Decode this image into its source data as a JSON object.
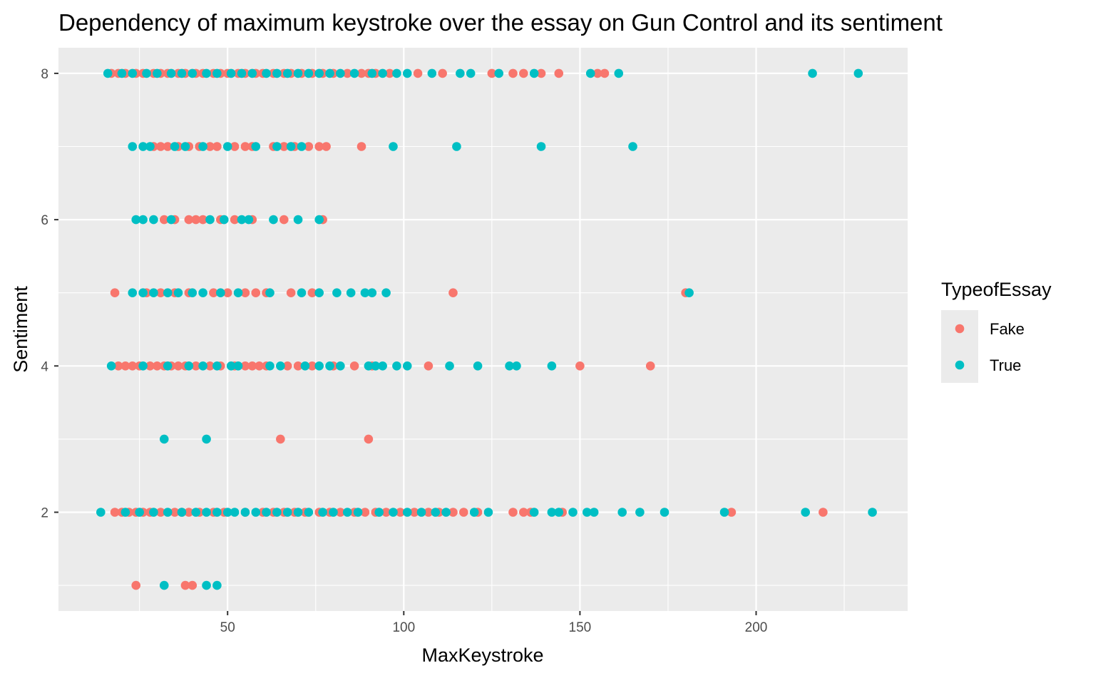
{
  "chart_data": {
    "type": "scatter",
    "title": "Dependency of maximum keystroke over the essay on Gun Control and its sentiment",
    "xlabel": "MaxKeystroke",
    "ylabel": "Sentiment",
    "xlim": [
      2,
      243
    ],
    "ylim": [
      0.65,
      8.35
    ],
    "x_ticks": [
      50,
      100,
      150,
      200
    ],
    "y_ticks": [
      2,
      4,
      6,
      8
    ],
    "grid": true,
    "legend": {
      "title": "TypeofEssay",
      "position": "right"
    },
    "colors": {
      "Fake": "#F8766D",
      "True": "#00BFC4",
      "panel": "#EBEBEB",
      "grid": "#FFFFFF"
    },
    "series": [
      {
        "name": "Fake",
        "points": [
          [
            17,
            8
          ],
          [
            19,
            8
          ],
          [
            21,
            8
          ],
          [
            24,
            8
          ],
          [
            26,
            8
          ],
          [
            29,
            8
          ],
          [
            31,
            8
          ],
          [
            33,
            8
          ],
          [
            36,
            8
          ],
          [
            38,
            8
          ],
          [
            41,
            8
          ],
          [
            43,
            8
          ],
          [
            46,
            8
          ],
          [
            48,
            8
          ],
          [
            50,
            8
          ],
          [
            53,
            8
          ],
          [
            55,
            8
          ],
          [
            58,
            8
          ],
          [
            60,
            8
          ],
          [
            63,
            8
          ],
          [
            66,
            8
          ],
          [
            68,
            8
          ],
          [
            71,
            8
          ],
          [
            74,
            8
          ],
          [
            77,
            8
          ],
          [
            80,
            8
          ],
          [
            84,
            8
          ],
          [
            88,
            8
          ],
          [
            90,
            8
          ],
          [
            92,
            8
          ],
          [
            96,
            8
          ],
          [
            104,
            8
          ],
          [
            111,
            8
          ],
          [
            125,
            8
          ],
          [
            131,
            8
          ],
          [
            134,
            8
          ],
          [
            139,
            8
          ],
          [
            144,
            8
          ],
          [
            155,
            8
          ],
          [
            157,
            8
          ],
          [
            29,
            7
          ],
          [
            31,
            7
          ],
          [
            33,
            7
          ],
          [
            36,
            7
          ],
          [
            39,
            7
          ],
          [
            42,
            7
          ],
          [
            45,
            7
          ],
          [
            47,
            7
          ],
          [
            52,
            7
          ],
          [
            55,
            7
          ],
          [
            57,
            7
          ],
          [
            63,
            7
          ],
          [
            66,
            7
          ],
          [
            69,
            7
          ],
          [
            73,
            7
          ],
          [
            76,
            7
          ],
          [
            78,
            7
          ],
          [
            88,
            7
          ],
          [
            32,
            6
          ],
          [
            35,
            6
          ],
          [
            39,
            6
          ],
          [
            41,
            6
          ],
          [
            43,
            6
          ],
          [
            48,
            6
          ],
          [
            52,
            6
          ],
          [
            57,
            6
          ],
          [
            66,
            6
          ],
          [
            77,
            6
          ],
          [
            18,
            5
          ],
          [
            27,
            5
          ],
          [
            31,
            5
          ],
          [
            35,
            5
          ],
          [
            39,
            5
          ],
          [
            46,
            5
          ],
          [
            50,
            5
          ],
          [
            55,
            5
          ],
          [
            58,
            5
          ],
          [
            61,
            5
          ],
          [
            68,
            5
          ],
          [
            74,
            5
          ],
          [
            114,
            5
          ],
          [
            180,
            5
          ],
          [
            19,
            4
          ],
          [
            21,
            4
          ],
          [
            23,
            4
          ],
          [
            25,
            4
          ],
          [
            28,
            4
          ],
          [
            30,
            4
          ],
          [
            32,
            4
          ],
          [
            34,
            4
          ],
          [
            36,
            4
          ],
          [
            38,
            4
          ],
          [
            41,
            4
          ],
          [
            45,
            4
          ],
          [
            48,
            4
          ],
          [
            52,
            4
          ],
          [
            55,
            4
          ],
          [
            57,
            4
          ],
          [
            59,
            4
          ],
          [
            61,
            4
          ],
          [
            67,
            4
          ],
          [
            70,
            4
          ],
          [
            74,
            4
          ],
          [
            80,
            4
          ],
          [
            86,
            4
          ],
          [
            91,
            4
          ],
          [
            107,
            4
          ],
          [
            150,
            4
          ],
          [
            170,
            4
          ],
          [
            65,
            3
          ],
          [
            90,
            3
          ],
          [
            18,
            2
          ],
          [
            20,
            2
          ],
          [
            22,
            2
          ],
          [
            24,
            2
          ],
          [
            26,
            2
          ],
          [
            28,
            2
          ],
          [
            31,
            2
          ],
          [
            35,
            2
          ],
          [
            37,
            2
          ],
          [
            39,
            2
          ],
          [
            42,
            2
          ],
          [
            46,
            2
          ],
          [
            49,
            2
          ],
          [
            55,
            2
          ],
          [
            60,
            2
          ],
          [
            63,
            2
          ],
          [
            66,
            2
          ],
          [
            69,
            2
          ],
          [
            72,
            2
          ],
          [
            76,
            2
          ],
          [
            79,
            2
          ],
          [
            82,
            2
          ],
          [
            86,
            2
          ],
          [
            89,
            2
          ],
          [
            92,
            2
          ],
          [
            95,
            2
          ],
          [
            99,
            2
          ],
          [
            103,
            2
          ],
          [
            107,
            2
          ],
          [
            110,
            2
          ],
          [
            114,
            2
          ],
          [
            117,
            2
          ],
          [
            121,
            2
          ],
          [
            131,
            2
          ],
          [
            134,
            2
          ],
          [
            136,
            2
          ],
          [
            145,
            2
          ],
          [
            193,
            2
          ],
          [
            219,
            2
          ],
          [
            24,
            1
          ],
          [
            38,
            1
          ],
          [
            40,
            1
          ]
        ]
      },
      {
        "name": "True",
        "points": [
          [
            16,
            8
          ],
          [
            20,
            8
          ],
          [
            23,
            8
          ],
          [
            27,
            8
          ],
          [
            30,
            8
          ],
          [
            34,
            8
          ],
          [
            37,
            8
          ],
          [
            40,
            8
          ],
          [
            44,
            8
          ],
          [
            47,
            8
          ],
          [
            51,
            8
          ],
          [
            54,
            8
          ],
          [
            57,
            8
          ],
          [
            61,
            8
          ],
          [
            64,
            8
          ],
          [
            67,
            8
          ],
          [
            70,
            8
          ],
          [
            73,
            8
          ],
          [
            76,
            8
          ],
          [
            79,
            8
          ],
          [
            82,
            8
          ],
          [
            86,
            8
          ],
          [
            91,
            8
          ],
          [
            94,
            8
          ],
          [
            98,
            8
          ],
          [
            101,
            8
          ],
          [
            108,
            8
          ],
          [
            116,
            8
          ],
          [
            119,
            8
          ],
          [
            127,
            8
          ],
          [
            137,
            8
          ],
          [
            153,
            8
          ],
          [
            161,
            8
          ],
          [
            216,
            8
          ],
          [
            229,
            8
          ],
          [
            23,
            7
          ],
          [
            26,
            7
          ],
          [
            28,
            7
          ],
          [
            35,
            7
          ],
          [
            38,
            7
          ],
          [
            43,
            7
          ],
          [
            50,
            7
          ],
          [
            58,
            7
          ],
          [
            64,
            7
          ],
          [
            68,
            7
          ],
          [
            71,
            7
          ],
          [
            97,
            7
          ],
          [
            115,
            7
          ],
          [
            139,
            7
          ],
          [
            165,
            7
          ],
          [
            24,
            6
          ],
          [
            26,
            6
          ],
          [
            29,
            6
          ],
          [
            34,
            6
          ],
          [
            45,
            6
          ],
          [
            49,
            6
          ],
          [
            54,
            6
          ],
          [
            56,
            6
          ],
          [
            63,
            6
          ],
          [
            70,
            6
          ],
          [
            76,
            6
          ],
          [
            23,
            5
          ],
          [
            26,
            5
          ],
          [
            29,
            5
          ],
          [
            33,
            5
          ],
          [
            36,
            5
          ],
          [
            40,
            5
          ],
          [
            43,
            5
          ],
          [
            48,
            5
          ],
          [
            53,
            5
          ],
          [
            62,
            5
          ],
          [
            71,
            5
          ],
          [
            76,
            5
          ],
          [
            81,
            5
          ],
          [
            85,
            5
          ],
          [
            89,
            5
          ],
          [
            91,
            5
          ],
          [
            95,
            5
          ],
          [
            181,
            5
          ],
          [
            17,
            4
          ],
          [
            26,
            4
          ],
          [
            33,
            4
          ],
          [
            39,
            4
          ],
          [
            43,
            4
          ],
          [
            47,
            4
          ],
          [
            51,
            4
          ],
          [
            53,
            4
          ],
          [
            62,
            4
          ],
          [
            65,
            4
          ],
          [
            72,
            4
          ],
          [
            76,
            4
          ],
          [
            79,
            4
          ],
          [
            82,
            4
          ],
          [
            90,
            4
          ],
          [
            92,
            4
          ],
          [
            94,
            4
          ],
          [
            98,
            4
          ],
          [
            101,
            4
          ],
          [
            113,
            4
          ],
          [
            121,
            4
          ],
          [
            130,
            4
          ],
          [
            132,
            4
          ],
          [
            142,
            4
          ],
          [
            32,
            3
          ],
          [
            44,
            3
          ],
          [
            14,
            2
          ],
          [
            21,
            2
          ],
          [
            25,
            2
          ],
          [
            29,
            2
          ],
          [
            33,
            2
          ],
          [
            37,
            2
          ],
          [
            41,
            2
          ],
          [
            44,
            2
          ],
          [
            47,
            2
          ],
          [
            50,
            2
          ],
          [
            52,
            2
          ],
          [
            55,
            2
          ],
          [
            58,
            2
          ],
          [
            61,
            2
          ],
          [
            64,
            2
          ],
          [
            67,
            2
          ],
          [
            70,
            2
          ],
          [
            73,
            2
          ],
          [
            77,
            2
          ],
          [
            80,
            2
          ],
          [
            84,
            2
          ],
          [
            87,
            2
          ],
          [
            93,
            2
          ],
          [
            97,
            2
          ],
          [
            101,
            2
          ],
          [
            105,
            2
          ],
          [
            109,
            2
          ],
          [
            112,
            2
          ],
          [
            120,
            2
          ],
          [
            124,
            2
          ],
          [
            137,
            2
          ],
          [
            142,
            2
          ],
          [
            144,
            2
          ],
          [
            148,
            2
          ],
          [
            152,
            2
          ],
          [
            154,
            2
          ],
          [
            162,
            2
          ],
          [
            167,
            2
          ],
          [
            174,
            2
          ],
          [
            191,
            2
          ],
          [
            214,
            2
          ],
          [
            233,
            2
          ],
          [
            32,
            1
          ],
          [
            44,
            1
          ],
          [
            47,
            1
          ]
        ]
      }
    ]
  }
}
